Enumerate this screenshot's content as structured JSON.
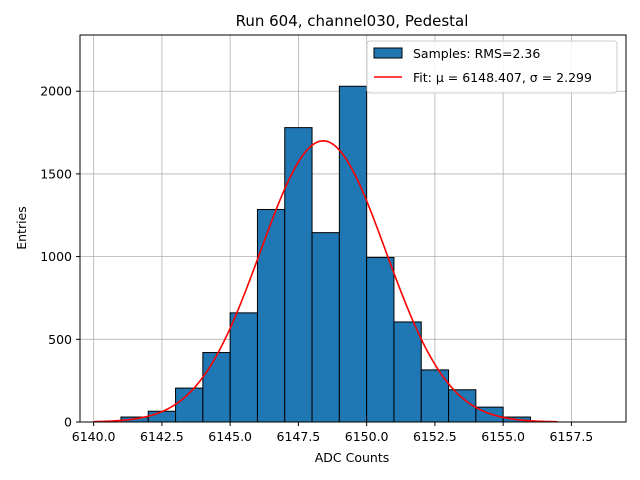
{
  "chart_data": {
    "type": "bar",
    "title": "Run 604, channel030, Pedestal",
    "xlabel": "ADC Counts",
    "ylabel": "Entries",
    "xlim": [
      6139.5,
      6159.5
    ],
    "ylim": [
      0,
      2340
    ],
    "x_ticks": [
      6140.0,
      6142.5,
      6145.0,
      6147.5,
      6150.0,
      6152.5,
      6155.0,
      6157.5
    ],
    "x_tick_labels": [
      "6140.0",
      "6142.5",
      "6145.0",
      "6147.5",
      "6150.0",
      "6152.5",
      "6155.0",
      "6157.5"
    ],
    "y_ticks": [
      0,
      500,
      1000,
      1500,
      2000
    ],
    "y_tick_labels": [
      "0",
      "500",
      "1000",
      "1500",
      "2000"
    ],
    "grid": true,
    "legend_position": "top-right",
    "series": [
      {
        "name": "Samples: RMS=2.36",
        "kind": "histogram",
        "color": "#1f77b4",
        "edge_color": "#000000",
        "bin_edges": [
          6140,
          6141,
          6142,
          6143,
          6144,
          6145,
          6146,
          6147,
          6148,
          6149,
          6150,
          6151,
          6152,
          6153,
          6154,
          6155,
          6156,
          6157,
          6158,
          6159
        ],
        "values": [
          0,
          30,
          65,
          205,
          420,
          660,
          1285,
          1780,
          1145,
          2030,
          995,
          605,
          315,
          195,
          90,
          30,
          0,
          0,
          0
        ]
      },
      {
        "name": "Fit: μ = 6148.407, σ = 2.299",
        "kind": "gaussian",
        "color": "#ff0000",
        "mu": 6148.407,
        "sigma": 2.299,
        "amplitude": 1700,
        "x_range": [
          6140.0,
          6157.0
        ]
      }
    ]
  }
}
